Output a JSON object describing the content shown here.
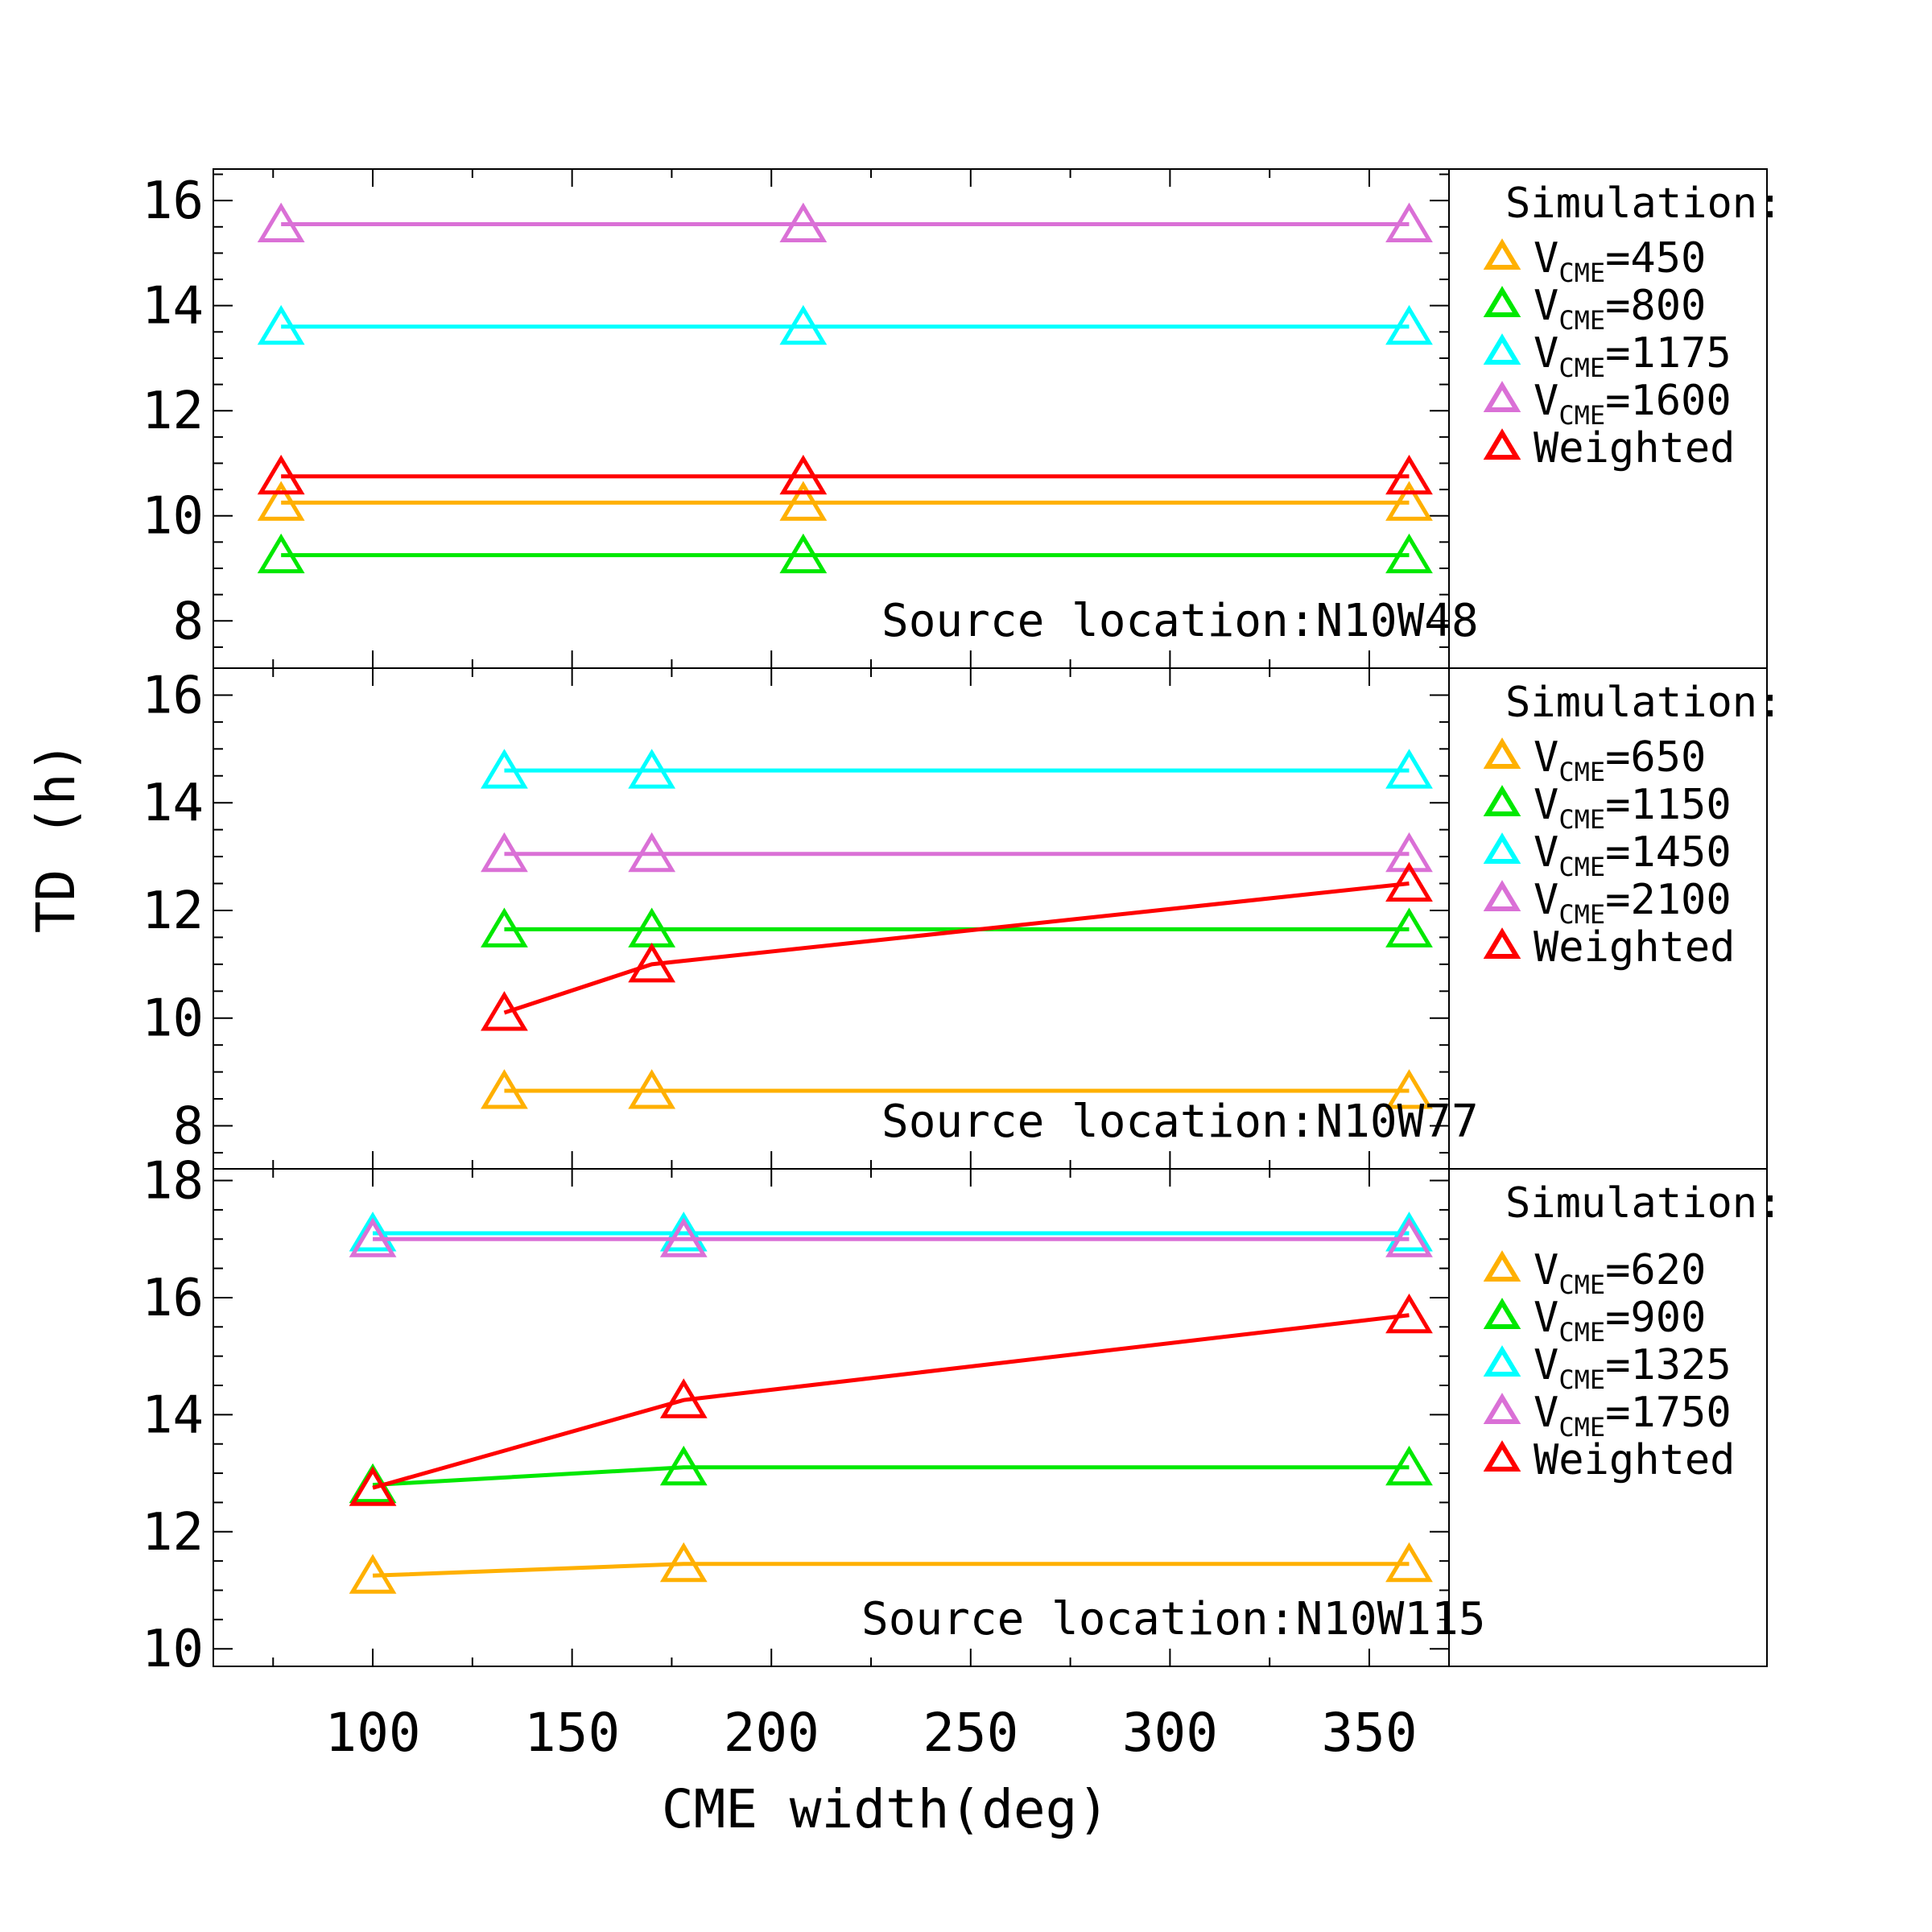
{
  "figure": {
    "ylabel": "TD (h)",
    "xlabel": "CME width(deg)",
    "x_tick_labels": [
      "100",
      "150",
      "200",
      "250",
      "300",
      "350"
    ]
  },
  "colors": {
    "orange": "#FFB000",
    "green": "#00E800",
    "cyan": "#00FFFF",
    "violet": "#DA70D6",
    "red": "#FF0000"
  },
  "chart_data": [
    {
      "type": "line",
      "xlim": [
        60,
        370
      ],
      "ylim": [
        7.1,
        16.6
      ],
      "y_ticks": [
        8,
        10,
        12,
        14,
        16
      ],
      "annotation": "Source location:N10W48",
      "legend_title": "Simulation:",
      "legend_position": "right",
      "series": [
        {
          "name": "V_CME=450",
          "sub_main": "V",
          "sub": "CME",
          "value_text": "=450",
          "color": "orange",
          "x": [
            77,
            208,
            360
          ],
          "y": [
            10.25,
            10.25,
            10.25
          ]
        },
        {
          "name": "V_CME=800",
          "sub_main": "V",
          "sub": "CME",
          "value_text": "=800",
          "color": "green",
          "x": [
            77,
            208,
            360
          ],
          "y": [
            9.25,
            9.25,
            9.25
          ]
        },
        {
          "name": "V_CME=1175",
          "sub_main": "V",
          "sub": "CME",
          "value_text": "=1175",
          "color": "cyan",
          "x": [
            77,
            208,
            360
          ],
          "y": [
            13.6,
            13.6,
            13.6
          ]
        },
        {
          "name": "V_CME=1600",
          "sub_main": "V",
          "sub": "CME",
          "value_text": "=1600",
          "color": "violet",
          "x": [
            77,
            208,
            360
          ],
          "y": [
            15.55,
            15.55,
            15.55
          ]
        },
        {
          "name": "Weighted",
          "sub_main": "Weighted",
          "sub": "",
          "value_text": "",
          "color": "red",
          "x": [
            77,
            208,
            360
          ],
          "y": [
            10.75,
            10.75,
            10.75
          ]
        }
      ]
    },
    {
      "type": "line",
      "xlim": [
        60,
        370
      ],
      "ylim": [
        7.2,
        16.5
      ],
      "y_ticks": [
        8,
        10,
        12,
        14,
        16
      ],
      "annotation": "Source location:N10W77",
      "legend_title": "Simulation:",
      "legend_position": "right",
      "series": [
        {
          "name": "V_CME=650",
          "sub_main": "V",
          "sub": "CME",
          "value_text": "=650",
          "color": "orange",
          "x": [
            133,
            170,
            360
          ],
          "y": [
            8.65,
            8.65,
            8.65
          ]
        },
        {
          "name": "V_CME=1150",
          "sub_main": "V",
          "sub": "CME",
          "value_text": "=1150",
          "color": "green",
          "x": [
            133,
            170,
            360
          ],
          "y": [
            11.65,
            11.65,
            11.65
          ]
        },
        {
          "name": "V_CME=1450",
          "sub_main": "V",
          "sub": "CME",
          "value_text": "=1450",
          "color": "cyan",
          "x": [
            133,
            170,
            360
          ],
          "y": [
            14.6,
            14.6,
            14.6
          ]
        },
        {
          "name": "V_CME=2100",
          "sub_main": "V",
          "sub": "CME",
          "value_text": "=2100",
          "color": "violet",
          "x": [
            133,
            170,
            360
          ],
          "y": [
            13.05,
            13.05,
            13.05
          ]
        },
        {
          "name": "Weighted",
          "sub_main": "Weighted",
          "sub": "",
          "value_text": "",
          "color": "red",
          "x": [
            133,
            170,
            360
          ],
          "y": [
            10.1,
            11.0,
            12.5
          ]
        }
      ]
    },
    {
      "type": "line",
      "xlim": [
        60,
        370
      ],
      "ylim": [
        9.7,
        18.2
      ],
      "y_ticks": [
        10,
        12,
        14,
        16,
        18
      ],
      "annotation": "Source location:N10W115",
      "legend_title": "Simulation:",
      "legend_position": "right",
      "series": [
        {
          "name": "V_CME=620",
          "sub_main": "V",
          "sub": "CME",
          "value_text": "=620",
          "color": "orange",
          "x": [
            100,
            178,
            360
          ],
          "y": [
            11.25,
            11.45,
            11.45
          ]
        },
        {
          "name": "V_CME=900",
          "sub_main": "V",
          "sub": "CME",
          "value_text": "=900",
          "color": "green",
          "x": [
            100,
            178,
            360
          ],
          "y": [
            12.8,
            13.1,
            13.1
          ]
        },
        {
          "name": "V_CME=1325",
          "sub_main": "V",
          "sub": "CME",
          "value_text": "=1325",
          "color": "cyan",
          "x": [
            100,
            178,
            360
          ],
          "y": [
            17.1,
            17.1,
            17.1
          ]
        },
        {
          "name": "V_CME=1750",
          "sub_main": "V",
          "sub": "CME",
          "value_text": "=1750",
          "color": "violet",
          "x": [
            100,
            178,
            360
          ],
          "y": [
            17.0,
            17.0,
            17.0
          ]
        },
        {
          "name": "Weighted",
          "sub_main": "Weighted",
          "sub": "",
          "value_text": "",
          "color": "red",
          "x": [
            100,
            178,
            360
          ],
          "y": [
            12.75,
            14.25,
            15.7
          ]
        }
      ]
    }
  ]
}
